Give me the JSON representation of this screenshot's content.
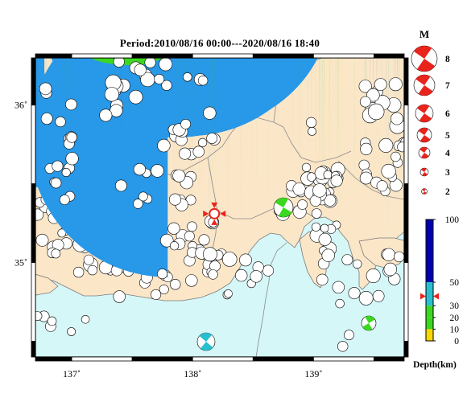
{
  "title": "Period:2010/08/16 00:00---2020/08/16 18:40",
  "map": {
    "lon_ticks": [
      {
        "value": 137,
        "label": "137˚"
      },
      {
        "value": 138,
        "label": "138˚"
      },
      {
        "value": 139,
        "label": "139˚"
      }
    ],
    "lat_ticks": [
      {
        "value": 36,
        "label": "36˚"
      },
      {
        "value": 35,
        "label": "35˚"
      }
    ],
    "lon_range": [
      136.7,
      139.75
    ],
    "lat_range": [
      34.4,
      36.3
    ],
    "land_color": "#fbe6c8",
    "sea_color": "#d6f7f7",
    "epicenter": {
      "lon": 138.18,
      "lat": 35.31,
      "color": "#e8241c"
    }
  },
  "magnitude_legend": {
    "label": "M",
    "items": [
      "8",
      "7",
      "6",
      "5",
      "4",
      "3",
      "2"
    ]
  },
  "depth_legend": {
    "label": "Depth(km)",
    "ticks": [
      "100",
      "50",
      "30",
      "20",
      "10",
      "0"
    ],
    "colors": [
      "#f8d800",
      "#3cd820",
      "#28c0d0",
      "#2898e8",
      "#0000b0"
    ],
    "marker_depth_km": 38
  },
  "events": {
    "yellow": "#f8d800",
    "green": "#3cd820",
    "cyan": "#28c0d0",
    "blue": "#2898e8",
    "navy": "#0010b0"
  }
}
